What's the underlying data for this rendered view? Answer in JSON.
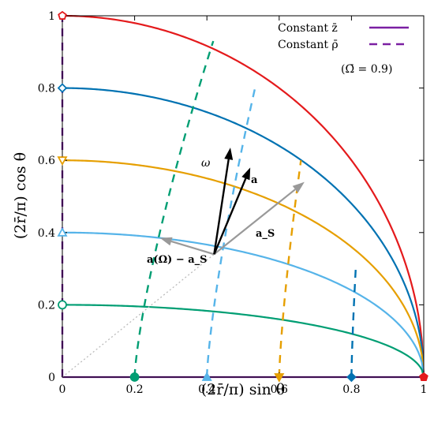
{
  "chart_data": {
    "type": "line",
    "xlabel": "(2r̄/π) sin θ",
    "ylabel": "(2r̄/π) cos θ",
    "xlim": [
      0,
      1
    ],
    "ylim": [
      0,
      1
    ],
    "x_ticks": [
      "0",
      "0.2",
      "0.4",
      "0.6",
      "0.8",
      "1"
    ],
    "y_ticks": [
      "0",
      "0.2",
      "0.4",
      "0.6",
      "0.8",
      "1"
    ],
    "legend_position": "top-right",
    "legend": [
      {
        "label": "Constant z̄",
        "style": "solid",
        "color": "#7b1fa2"
      },
      {
        "label": "Constant ρ̄",
        "style": "dashed",
        "color": "#7b1fa2"
      }
    ],
    "omega_label": "(Ω̄ = 0.9)",
    "grid": false,
    "constant_z_curves": [
      {
        "value": 1.0,
        "color": "#e41a1c",
        "marker": "pentagon"
      },
      {
        "value": 0.8,
        "color": "#0072b2",
        "marker": "diamond"
      },
      {
        "value": 0.6,
        "color": "#e69f00",
        "marker": "triangle-down"
      },
      {
        "value": 0.4,
        "color": "#56b4e9",
        "marker": "triangle-up"
      },
      {
        "value": 0.2,
        "color": "#009e73",
        "marker": "circle"
      },
      {
        "value": 0.0,
        "color": "#7b1fa2",
        "marker": "none"
      }
    ],
    "constant_rho_curves": [
      {
        "value": 0.0,
        "color": "#7b1fa2",
        "marker": "none"
      },
      {
        "value": 0.2,
        "color": "#009e73",
        "marker": "circle"
      },
      {
        "value": 0.4,
        "color": "#56b4e9",
        "marker": "triangle-up"
      },
      {
        "value": 0.6,
        "color": "#e69f00",
        "marker": "triangle-down"
      },
      {
        "value": 0.8,
        "color": "#0072b2",
        "marker": "diamond"
      }
    ],
    "vectors": {
      "origin": [
        0.42,
        0.34
      ],
      "omega": {
        "label": "ω",
        "tip": [
          0.465,
          0.635
        ],
        "color": "#000000"
      },
      "a": {
        "label": "a",
        "tip": [
          0.52,
          0.58
        ],
        "color": "#000000"
      },
      "a_s": {
        "label": "a_S",
        "tip": [
          0.67,
          0.54
        ],
        "color": "#999999"
      },
      "a_minus_as": {
        "label": "a(Ω) − a_S",
        "tip": [
          0.27,
          0.385
        ],
        "color": "#999999"
      }
    },
    "dotted_line": {
      "from": [
        0,
        0
      ],
      "to": [
        0.42,
        0.34
      ],
      "color": "#bbbbbb"
    }
  }
}
